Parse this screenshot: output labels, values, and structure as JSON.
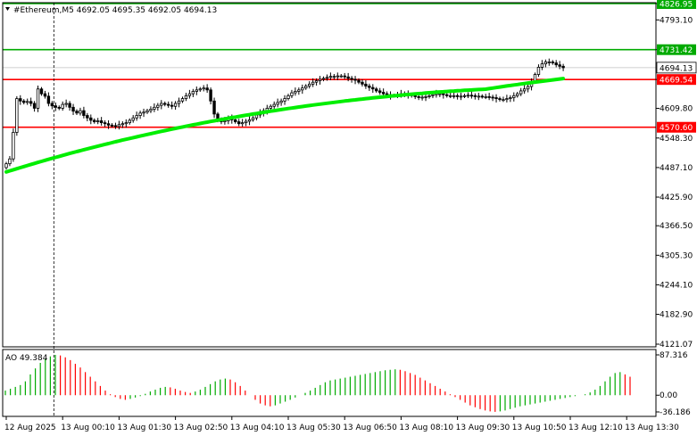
{
  "chart_data": {
    "type": "candlestick",
    "symbol": "#Ethereum",
    "timeframe": "M5",
    "ohlc_text": "4692.05 4695.35 4692.05 4694.13",
    "price_axis": {
      "range": [
        4121.07,
        4826.95
      ],
      "ticks": [
        "4826.95",
        "4793.10",
        "4731.42",
        "4669.54",
        "4609.80",
        "4548.30",
        "4487.10",
        "4425.90",
        "4366.50",
        "4305.30",
        "4244.10",
        "4182.90",
        "4121.07"
      ],
      "tick_values": [
        4826.95,
        4793.1,
        4731.42,
        4669.54,
        4609.8,
        4548.3,
        4487.1,
        4425.9,
        4366.5,
        4305.3,
        4244.1,
        4182.9,
        4121.07
      ]
    },
    "levels": [
      {
        "label": "4826.95",
        "value": 4826.95,
        "color": "#00aa00"
      },
      {
        "label": "4731.42",
        "value": 4731.42,
        "color": "#00aa00"
      },
      {
        "label": "4669.54",
        "value": 4669.54,
        "color": "#ff0000"
      },
      {
        "label": "4570.60",
        "value": 4570.6,
        "color": "#ff0000"
      }
    ],
    "current_price": {
      "label": "4694.13",
      "value": 4694.13
    },
    "x_axis": {
      "labels": [
        "12 Aug 2025",
        "13 Aug 00:10",
        "13 Aug 01:30",
        "13 Aug 02:50",
        "13 Aug 04:10",
        "13 Aug 05:30",
        "13 Aug 06:50",
        "13 Aug 08:10",
        "13 Aug 09:30",
        "13 Aug 10:50",
        "13 Aug 12:10",
        "13 Aug 13:30"
      ],
      "label_bar_index": [
        0,
        16,
        32,
        48,
        64,
        80,
        96,
        112,
        128,
        144,
        160,
        176
      ]
    },
    "closes": [
      4495,
      4505,
      4560,
      4630,
      4625,
      4622,
      4624,
      4620,
      4610,
      4650,
      4640,
      4635,
      4620,
      4615,
      4612,
      4610,
      4618,
      4620,
      4612,
      4604,
      4600,
      4605,
      4595,
      4590,
      4585,
      4582,
      4584,
      4580,
      4578,
      4575,
      4574,
      4572,
      4576,
      4578,
      4580,
      4585,
      4590,
      4595,
      4600,
      4602,
      4605,
      4608,
      4612,
      4616,
      4620,
      4618,
      4616,
      4614,
      4620,
      4625,
      4630,
      4636,
      4640,
      4645,
      4648,
      4650,
      4652,
      4648,
      4625,
      4598,
      4585,
      4582,
      4584,
      4590,
      4586,
      4582,
      4578,
      4580,
      4583,
      4586,
      4590,
      4596,
      4600,
      4605,
      4610,
      4614,
      4618,
      4622,
      4625,
      4630,
      4636,
      4642,
      4645,
      4648,
      4652,
      4656,
      4660,
      4664,
      4667,
      4670,
      4672,
      4674,
      4676,
      4676,
      4677,
      4677,
      4675,
      4672,
      4670,
      4668,
      4664,
      4660,
      4656,
      4653,
      4650,
      4646,
      4643,
      4640,
      4638,
      4636,
      4636,
      4638,
      4640,
      4640,
      4638,
      4636,
      4634,
      4633,
      4633,
      4634,
      4636,
      4638,
      4640,
      4640,
      4638,
      4636,
      4636,
      4636,
      4635,
      4635,
      4636,
      4637,
      4636,
      4635,
      4635,
      4634,
      4634,
      4633,
      4632,
      4630,
      4628,
      4628,
      4630,
      4632,
      4636,
      4640,
      4646,
      4650,
      4655,
      4665,
      4680,
      4695,
      4702,
      4706,
      4706,
      4704,
      4700,
      4697,
      4694
    ],
    "ma": {
      "color": "#00ee00",
      "start": 4478,
      "end": 4652
    },
    "ao_indicator": {
      "label": "AO 49.384",
      "axis_ticks": [
        "87.316",
        "0.00",
        "-36.186"
      ],
      "axis_values": [
        87.316,
        0.0,
        -36.186
      ],
      "up_color": "#00aa00",
      "down_color": "#ff0000",
      "histogram": [
        10,
        14,
        18,
        22,
        30,
        45,
        58,
        70,
        78,
        84,
        87.3,
        86,
        82,
        76,
        68,
        60,
        50,
        40,
        30,
        20,
        10,
        2,
        -4,
        -8,
        -10,
        -8,
        -5,
        -2,
        3,
        8,
        12,
        16,
        18,
        17,
        14,
        10,
        7,
        5,
        8,
        12,
        18,
        24,
        30,
        34,
        36,
        34,
        28,
        20,
        10,
        0,
        -10,
        -18,
        -22,
        -24,
        -22,
        -18,
        -14,
        -10,
        -5,
        0,
        5,
        10,
        16,
        22,
        28,
        32,
        34,
        36,
        38,
        40,
        42,
        44,
        46,
        48,
        50,
        52,
        54,
        55,
        56,
        55,
        52,
        48,
        44,
        38,
        32,
        26,
        20,
        14,
        8,
        2,
        -4,
        -10,
        -16,
        -22,
        -26,
        -30,
        -33,
        -35,
        -36,
        -35,
        -33,
        -30,
        -27,
        -24,
        -22,
        -20,
        -18,
        -16,
        -14,
        -12,
        -10,
        -8,
        -6,
        -4,
        -2,
        0,
        2,
        6,
        12,
        20,
        30,
        40,
        48,
        50,
        45,
        40
      ]
    }
  }
}
